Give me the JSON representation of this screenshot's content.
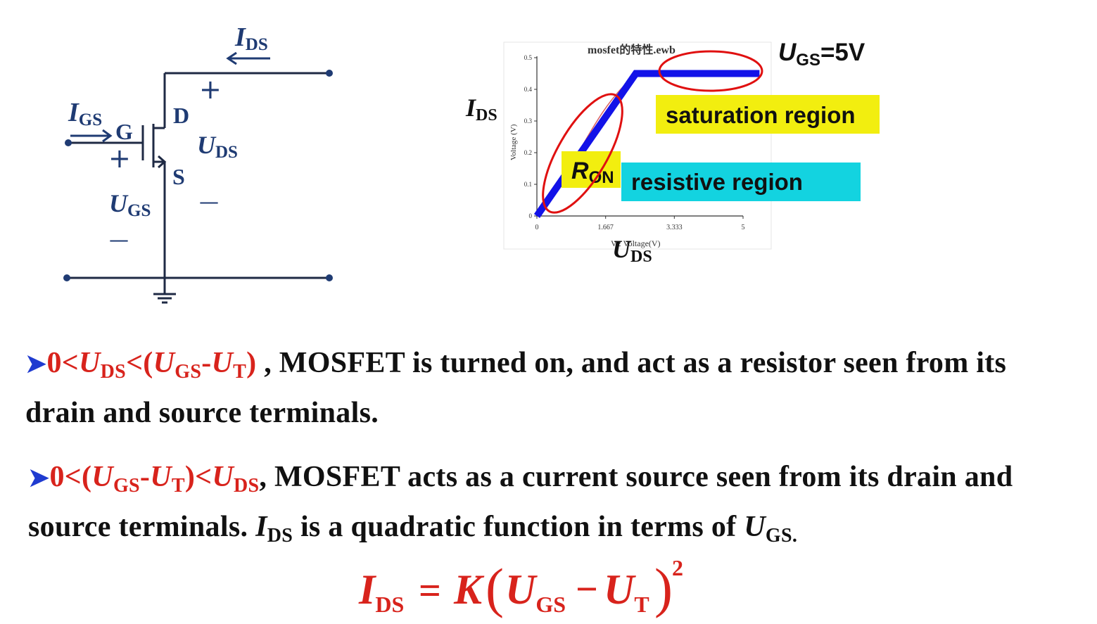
{
  "circuit": {
    "ids_top": {
      "main": "I",
      "sub": "DS"
    },
    "igs": {
      "main": "I",
      "sub": "GS"
    },
    "g_label": "G",
    "d_label": "D",
    "s_label": "S",
    "uds": {
      "main": "U",
      "sub": "DS"
    },
    "ugs": {
      "main": "U",
      "sub": "GS"
    },
    "plus": "+",
    "minus": "—"
  },
  "chart": {
    "title": "mosfet的特性.ewb",
    "ylabel": "Voltage (V)",
    "xlabel": "V2 Voltage(V)",
    "ids_label": {
      "main": "I",
      "sub": "DS"
    },
    "uds_label": {
      "main": "U",
      "sub": "DS"
    },
    "ugs_label": {
      "main": "U",
      "sub": "GS",
      "tail": "=5V"
    },
    "saturation_label": "saturation region",
    "resistive_label": "resistive region",
    "ron_label": {
      "main": "R",
      "sub": "ON"
    },
    "colors": {
      "curve": "#1212e8",
      "highlight_yellow": "#f2ee0f",
      "highlight_cyan": "#13d3e0",
      "ellipse": "#e01010"
    }
  },
  "chart_data": {
    "type": "line",
    "title": "mosfet的特性.ewb",
    "xlabel": "V2 Voltage(V)",
    "ylabel": "Voltage (V)",
    "xlim": [
      0,
      5
    ],
    "ylim": [
      0,
      0.5
    ],
    "x_ticks": [
      "0",
      "1.667",
      "3.333",
      "5"
    ],
    "y_ticks": [
      "0",
      "0.1",
      "0.2",
      "0.3",
      "0.4",
      "0.5"
    ],
    "series": [
      {
        "x": [
          0,
          2.4,
          5.4
        ],
        "y": [
          0,
          0.45,
          0.45
        ]
      }
    ]
  },
  "text": {
    "p1_cond": {
      "a": "0<",
      "u1": "U",
      "s1": "DS",
      "b": "<(",
      "u2": "U",
      "s2": "GS",
      "c": "-",
      "u3": "U",
      "s3": "T",
      "d": ")"
    },
    "p1_rest": " , MOSFET is turned on, and act as a resistor seen from its",
    "p1_line2": "drain and source terminals.",
    "p2_cond": {
      "a": "0<(",
      "u1": "U",
      "s1": "GS",
      "b": "-",
      "u2": "U",
      "s2": "T",
      "c": ")<",
      "u3": "U",
      "s3": "DS"
    },
    "p2_rest": ", MOSFET acts as a current source seen from its drain and",
    "p2_line2a": "source terminals. ",
    "p2_ids": {
      "main": "I",
      "sub": "DS"
    },
    "p2_line2b": " is a quadratic function in terms of ",
    "p2_ugs": {
      "main": "U",
      "sub": "GS."
    },
    "bullet": "➤"
  },
  "formula": {
    "lhs": {
      "main": "I",
      "sub": "DS"
    },
    "eq": "=",
    "k": "K",
    "u1": {
      "main": "U",
      "sub": "GS"
    },
    "minus": "−",
    "u2": {
      "main": "U",
      "sub": "T"
    },
    "exp": "2"
  }
}
